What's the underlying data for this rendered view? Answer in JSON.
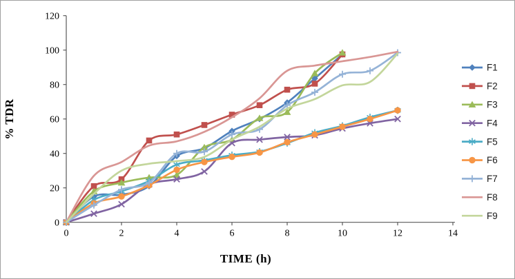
{
  "chart_data": {
    "type": "line",
    "title": "",
    "xlabel": "TIME (h)",
    "ylabel": "% TDR",
    "xlim": [
      0,
      14
    ],
    "ylim": [
      0,
      120
    ],
    "x_ticks": [
      0,
      2,
      4,
      6,
      8,
      10,
      12,
      14
    ],
    "y_ticks": [
      0,
      20,
      40,
      60,
      80,
      100,
      120
    ],
    "grid": false,
    "smoothed": true,
    "legend_position": "right",
    "x": [
      0,
      1,
      2,
      3,
      4,
      5,
      6,
      7,
      8,
      9,
      10,
      11,
      12
    ],
    "series": [
      {
        "name": "F1",
        "color": "#4F81BD",
        "marker": "diamond",
        "values": [
          0,
          15,
          16,
          21,
          38.5,
          43,
          53,
          60,
          69.5,
          83.5,
          97.5
        ]
      },
      {
        "name": "F2",
        "color": "#C0504D",
        "marker": "square",
        "values": [
          0,
          21,
          25,
          47.5,
          51,
          56.5,
          62.5,
          68,
          77,
          80.5,
          97.5
        ]
      },
      {
        "name": "F3",
        "color": "#9BBB59",
        "marker": "triangle",
        "values": [
          0,
          18,
          23,
          26,
          27.5,
          43.5,
          48,
          60.5,
          64,
          86.5,
          98.5
        ]
      },
      {
        "name": "F4",
        "color": "#8064A2",
        "marker": "x",
        "values": [
          0,
          5,
          10.5,
          22,
          25,
          29.5,
          46,
          48,
          49.5,
          50.5,
          54.5,
          57.5,
          60
        ]
      },
      {
        "name": "F5",
        "color": "#4BACC6",
        "marker": "star",
        "values": [
          0,
          13,
          18,
          24,
          33.5,
          36,
          39,
          41,
          46,
          52,
          56,
          61,
          65
        ]
      },
      {
        "name": "F6",
        "color": "#F79646",
        "marker": "circle",
        "values": [
          0,
          11,
          15,
          21.5,
          30.5,
          35,
          38,
          40.5,
          46.5,
          51,
          55.5,
          60,
          65
        ]
      },
      {
        "name": "F7",
        "color": "#95B3D7",
        "marker": "plus",
        "values": [
          0,
          10,
          19,
          23,
          40,
          41,
          51,
          54,
          68,
          75.5,
          86,
          88,
          98.5
        ]
      },
      {
        "name": "F8",
        "color": "#D99694",
        "marker": "none",
        "values": [
          0,
          27,
          35,
          44.5,
          47,
          52.5,
          61,
          72,
          88,
          91,
          93.5,
          96,
          99
        ]
      },
      {
        "name": "F9",
        "color": "#C3D69B",
        "marker": "none",
        "values": [
          0,
          16.5,
          30,
          34,
          35.5,
          38,
          48,
          55.5,
          66,
          71.5,
          79.5,
          81.5,
          98
        ]
      }
    ]
  }
}
